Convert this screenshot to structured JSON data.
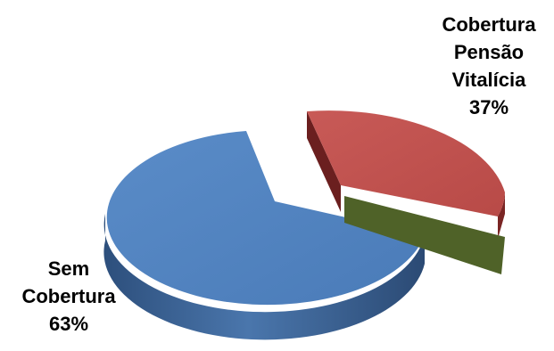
{
  "chart_data": {
    "type": "pie",
    "title": "",
    "slices": [
      {
        "label": "Cobertura Pensão Vitalícia",
        "value": 37,
        "value_label": "37%",
        "color": "#c0504d",
        "exploded": true
      },
      {
        "label": "Sem Cobertura",
        "value": 63,
        "value_label": "63%",
        "color": "#4f81bd",
        "exploded": false
      }
    ],
    "legend": "none",
    "style": "3d-exploded"
  },
  "labels": {
    "coverage": {
      "line1": "Cobertura",
      "line2": "Pensão",
      "line3": "Vitalícia",
      "pct": "37%"
    },
    "no_coverage": {
      "line1": "Sem",
      "line2": "Cobertura",
      "pct": "63%"
    }
  }
}
